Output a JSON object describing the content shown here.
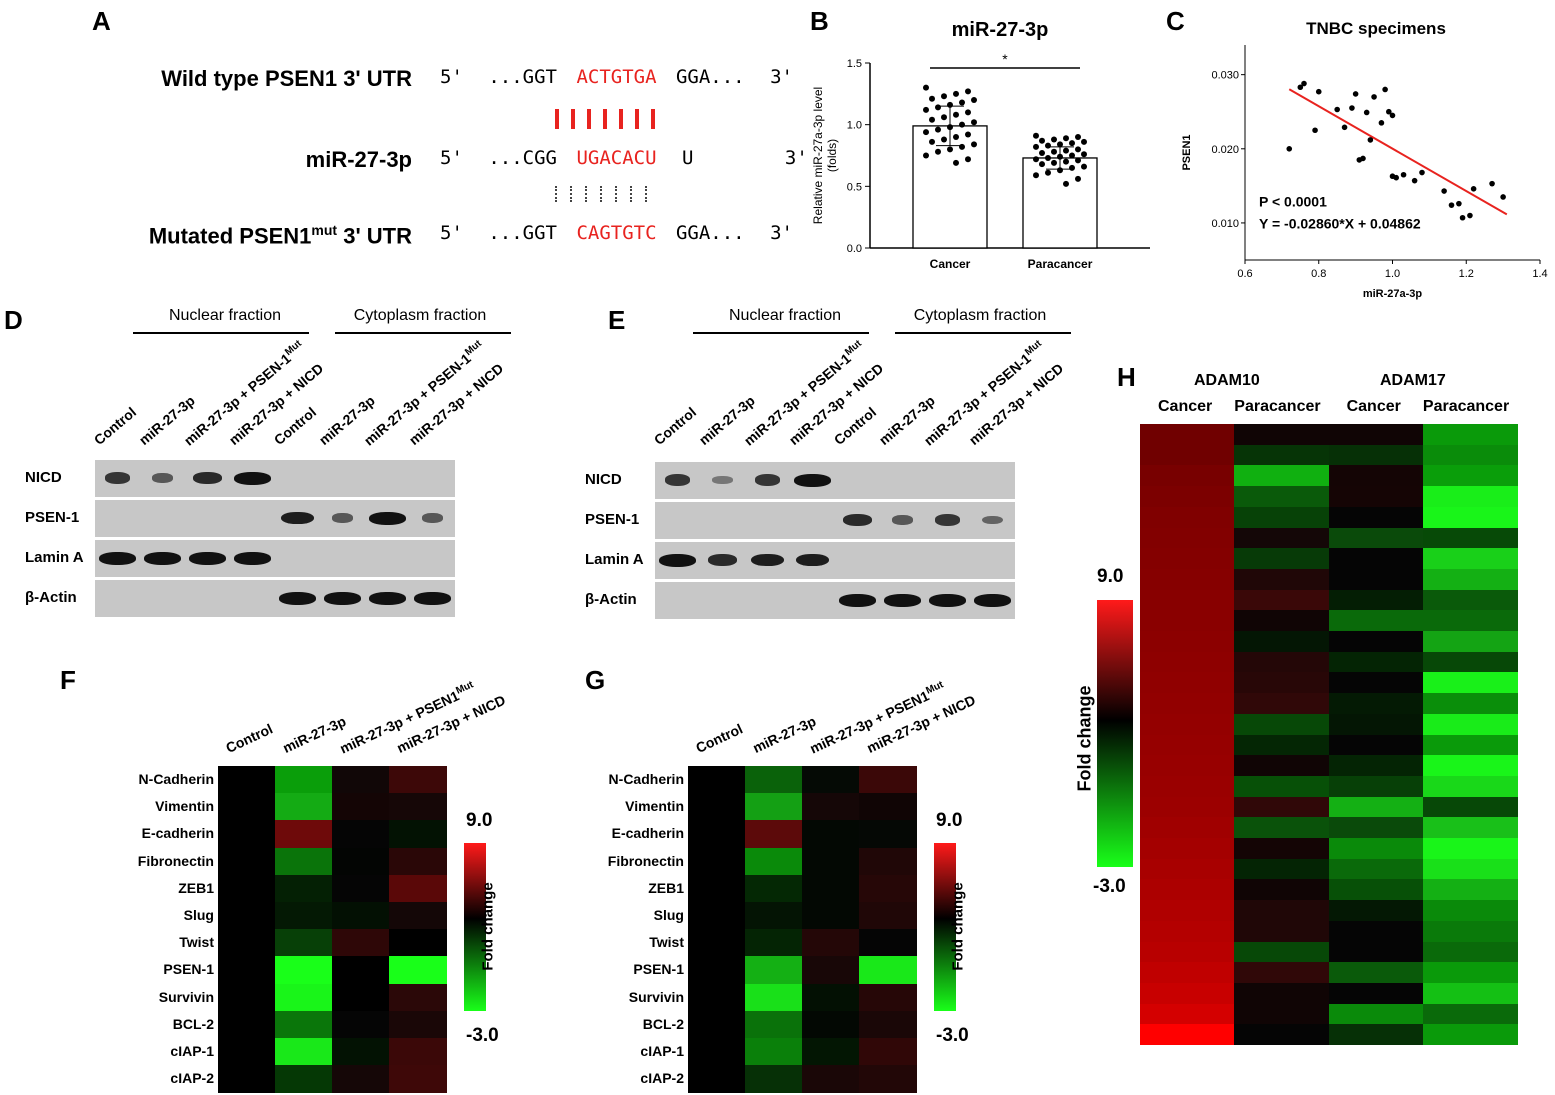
{
  "panels": {
    "A": "A",
    "B": "B",
    "C": "C",
    "D": "D",
    "E": "E",
    "F": "F",
    "G": "G",
    "H": "H"
  },
  "panelA": {
    "rows": [
      {
        "label": "Wild type PSEN1 3' UTR",
        "five": "5'",
        "pre": "...GGT",
        "core": "ACTGTGA",
        "post": "GGA...",
        "three": "3'"
      },
      {
        "label": "miR-27-3p",
        "five": "5'",
        "pre": "...CGG",
        "core": "UGACACU",
        "post": "U",
        "three": "3'"
      },
      {
        "label_pre": "Mutated PSEN1",
        "label_sup": "mut",
        "label_post": " 3' UTR",
        "five": "5'",
        "pre": "...GGT",
        "core": "CAGTGTC",
        "post": "GGA...",
        "three": "3'"
      }
    ]
  },
  "panelB": {
    "chart_data": {
      "type": "bar",
      "title": "miR-27-3p",
      "ylabel_line1": "Relative miR-27a-3p level",
      "ylabel_line2": "(folds)",
      "categories": [
        "Cancer",
        "Paracancer"
      ],
      "values": [
        0.99,
        0.73
      ],
      "errors": [
        0.16,
        0.09
      ],
      "ylim": [
        0,
        1.5
      ],
      "yticks": [
        "0.0",
        "0.5",
        "1.0",
        "1.5"
      ],
      "significance": "*",
      "points": [
        [
          1.3,
          1.27,
          1.25,
          1.23,
          1.21,
          1.2,
          1.18,
          1.16,
          1.14,
          1.12,
          1.1,
          1.08,
          1.06,
          1.04,
          1.02,
          1.0,
          0.98,
          0.96,
          0.94,
          0.92,
          0.9,
          0.88,
          0.86,
          0.84,
          0.82,
          0.8,
          0.78,
          0.75,
          0.72,
          0.69
        ],
        [
          0.91,
          0.9,
          0.89,
          0.88,
          0.87,
          0.86,
          0.85,
          0.84,
          0.83,
          0.82,
          0.8,
          0.79,
          0.78,
          0.77,
          0.76,
          0.75,
          0.74,
          0.73,
          0.72,
          0.71,
          0.7,
          0.69,
          0.68,
          0.66,
          0.65,
          0.63,
          0.61,
          0.59,
          0.56,
          0.52
        ]
      ]
    }
  },
  "panelC": {
    "chart_data": {
      "type": "scatter",
      "title": "TNBC specimens",
      "xlabel": "miR-27a-3p",
      "ylabel": "PSEN1",
      "xlim": [
        0.6,
        1.4
      ],
      "ylim": [
        0.005,
        0.034
      ],
      "xticks": [
        "0.6",
        "0.8",
        "1.0",
        "1.2",
        "1.4"
      ],
      "yticks": [
        "0.010",
        "0.020",
        "0.030"
      ],
      "x": [
        0.72,
        0.75,
        0.76,
        0.79,
        0.8,
        0.85,
        0.87,
        0.89,
        0.9,
        0.91,
        0.92,
        0.93,
        0.94,
        0.95,
        0.97,
        0.98,
        0.99,
        1.0,
        1.0,
        1.01,
        1.03,
        1.06,
        1.08,
        1.14,
        1.16,
        1.18,
        1.19,
        1.21,
        1.22,
        1.27,
        1.3
      ],
      "y": [
        0.02,
        0.0283,
        0.0288,
        0.0225,
        0.0277,
        0.0253,
        0.0229,
        0.0255,
        0.0274,
        0.0185,
        0.0187,
        0.0249,
        0.0212,
        0.027,
        0.0235,
        0.028,
        0.025,
        0.0163,
        0.0245,
        0.0161,
        0.0165,
        0.0157,
        0.0168,
        0.0143,
        0.0124,
        0.0126,
        0.0107,
        0.011,
        0.0146,
        0.0153,
        0.0135
      ],
      "fit": {
        "slope": -0.0286,
        "intercept": 0.04862,
        "x0": 0.72,
        "x1": 1.31
      },
      "annot1": "P < 0.0001",
      "annot2": "Y = -0.02860*X + 0.04862"
    }
  },
  "westernD": {
    "nuclear": "Nuclear fraction",
    "cyto": "Cytoplasm fraction",
    "lanes": [
      "Control",
      "miR-27-3p",
      "miR-27-3p + PSEN-1",
      "miR-27-3p + NICD",
      "Control",
      "miR-27-3p",
      "miR-27-3p + PSEN-1",
      "miR-27-3p + NICD"
    ],
    "sup": "Mut",
    "rows": [
      "NICD",
      "PSEN-1",
      "Lamin A",
      "β-Actin"
    ],
    "bands": [
      [
        0.7,
        0.4,
        0.8,
        1.0,
        0,
        0,
        0,
        0
      ],
      [
        0,
        0,
        0,
        0,
        0.9,
        0.4,
        1.0,
        0.4
      ],
      [
        1.0,
        1.0,
        1.0,
        1.0,
        0,
        0,
        0,
        0
      ],
      [
        0,
        0,
        0,
        0,
        1.0,
        1.0,
        1.0,
        1.0
      ]
    ]
  },
  "westernE": {
    "nuclear": "Nuclear fraction",
    "cyto": "Cytoplasm fraction",
    "lanes": [
      "Control",
      "miR-27-3p",
      "miR-27-3p + PSEN-1",
      "miR-27-3p + NICD",
      "Control",
      "miR-27-3p",
      "miR-27-3p + PSEN-1",
      "miR-27-3p + NICD"
    ],
    "sup": "Mut",
    "rows": [
      "NICD",
      "PSEN-1",
      "Lamin A",
      "β-Actin"
    ],
    "bands": [
      [
        0.7,
        0.15,
        0.7,
        1.0,
        0,
        0,
        0,
        0
      ],
      [
        0,
        0,
        0,
        0,
        0.8,
        0.4,
        0.7,
        0.3
      ],
      [
        1.0,
        0.8,
        0.9,
        0.9,
        0,
        0,
        0,
        0
      ],
      [
        0,
        0,
        0,
        0,
        1.0,
        1.0,
        1.0,
        1.0
      ]
    ]
  },
  "heatF": {
    "cols": [
      "Control",
      "miR-27-3p",
      "miR-27-3p + PSEN1",
      "miR-27-3p + NICD"
    ],
    "sup": "Mut",
    "genes": [
      "N-Cadherin",
      "Vimentin",
      "E-cadherin",
      "Fibronectin",
      "ZEB1",
      "Slug",
      "Twist",
      "PSEN-1",
      "Survivin",
      "BCL-2",
      "cIAP-1",
      "cIAP-2"
    ],
    "colors": [
      [
        "#000000",
        "#0a9e0a",
        "#110707",
        "#3d0808"
      ],
      [
        "#000000",
        "#14ab14",
        "#140505",
        "#160707"
      ],
      [
        "#000000",
        "#6e0a0a",
        "#050505",
        "#031203"
      ],
      [
        "#000000",
        "#0a740a",
        "#030503",
        "#2a0707"
      ],
      [
        "#000000",
        "#042004",
        "#050505",
        "#5a0808"
      ],
      [
        "#000000",
        "#041904",
        "#031003",
        "#140707"
      ],
      [
        "#000000",
        "#074007",
        "#2e0707",
        "#000000"
      ],
      [
        "#000000",
        "#19ff19",
        "#000000",
        "#19ff19"
      ],
      [
        "#000000",
        "#19f519",
        "#000000",
        "#2b0808"
      ],
      [
        "#000000",
        "#0a760a",
        "#050505",
        "#1a0707"
      ],
      [
        "#000000",
        "#19e819",
        "#031203",
        "#3b0808"
      ],
      [
        "#000000",
        "#053805",
        "#150707",
        "#3e0808"
      ]
    ],
    "cb_top": "9.0",
    "cb_bot": "-3.0",
    "cb_label": "Fold change"
  },
  "heatG": {
    "cols": [
      "Control",
      "miR-27-3p",
      "miR-27-3p + PSEN1",
      "miR-27-3p + NICD"
    ],
    "sup": "Mut",
    "genes": [
      "N-Cadherin",
      "Vimentin",
      "E-cadherin",
      "Fibronectin",
      "ZEB1",
      "Slug",
      "Twist",
      "PSEN-1",
      "Survivin",
      "BCL-2",
      "cIAP-1",
      "cIAP-2"
    ],
    "colors": [
      [
        "#000000",
        "#0a620a",
        "#050a05",
        "#3b0808"
      ],
      [
        "#000000",
        "#14a014",
        "#150707",
        "#100505"
      ],
      [
        "#000000",
        "#5c0a0a",
        "#030803",
        "#050805"
      ],
      [
        "#000000",
        "#0a8a0a",
        "#030803",
        "#200707"
      ],
      [
        "#000000",
        "#042804",
        "#030803",
        "#260707"
      ],
      [
        "#000000",
        "#041404",
        "#030803",
        "#200707"
      ],
      [
        "#000000",
        "#042404",
        "#240707",
        "#050505"
      ],
      [
        "#000000",
        "#14b014",
        "#180707",
        "#19e819"
      ],
      [
        "#000000",
        "#19e019",
        "#031003",
        "#260707"
      ],
      [
        "#000000",
        "#0a720a",
        "#030803",
        "#1a0707"
      ],
      [
        "#000000",
        "#0a800a",
        "#031603",
        "#300707"
      ],
      [
        "#000000",
        "#063006",
        "#1a0707",
        "#220707"
      ]
    ],
    "cb_top": "9.0",
    "cb_bot": "-3.0",
    "cb_label": "Fold change"
  },
  "heatH": {
    "groups": [
      "ADAM10",
      "ADAM17"
    ],
    "cols": [
      "Cancer",
      "Paracancer",
      "Cancer",
      "Paracancer"
    ],
    "cb_top": "9.0",
    "cb_bot": "-3.0",
    "cb_label": "Fold change",
    "colors": [
      [
        "#700000",
        "#100505",
        "#100505",
        "#0a9a0a"
      ],
      [
        "#700000",
        "#063406",
        "#063006",
        "#0a8c0a"
      ],
      [
        "#780000",
        "#10b010",
        "#140505",
        "#0a9e0a"
      ],
      [
        "#7c0000",
        "#0a5a0a",
        "#150505",
        "#19ee19"
      ],
      [
        "#800000",
        "#074207",
        "#050505",
        "#19f519"
      ],
      [
        "#820000",
        "#140707",
        "#0a4a0a",
        "#074a07"
      ],
      [
        "#840000",
        "#073a07",
        "#050505",
        "#19d019"
      ],
      [
        "#860000",
        "#200707",
        "#050505",
        "#14b014"
      ],
      [
        "#880000",
        "#3a0808",
        "#041e04",
        "#0a5a0a"
      ],
      [
        "#8a0000",
        "#100505",
        "#0a6a0a",
        "#0a6a0a"
      ],
      [
        "#8c0000",
        "#041604",
        "#050505",
        "#14a414"
      ],
      [
        "#8e0000",
        "#240707",
        "#042404",
        "#074807"
      ],
      [
        "#900000",
        "#280707",
        "#050505",
        "#19f019"
      ],
      [
        "#920000",
        "#300808",
        "#041a04",
        "#0a8e0a"
      ],
      [
        "#940000",
        "#074807",
        "#041604",
        "#19ec19"
      ],
      [
        "#960000",
        "#042604",
        "#050505",
        "#0a9a0a"
      ],
      [
        "#980000",
        "#100505",
        "#042404",
        "#19f519"
      ],
      [
        "#9a0000",
        "#075007",
        "#074007",
        "#19d819"
      ],
      [
        "#9c0000",
        "#300808",
        "#14b014",
        "#074807"
      ],
      [
        "#a00000",
        "#0a520a",
        "#0a4a0a",
        "#19c019"
      ],
      [
        "#a40000",
        "#140505",
        "#0a8a0a",
        "#19f519"
      ],
      [
        "#a80000",
        "#042404",
        "#0a6a0a",
        "#19e019"
      ],
      [
        "#ac0000",
        "#100505",
        "#075007",
        "#14b014"
      ],
      [
        "#b00000",
        "#200707",
        "#041804",
        "#0a8a0a"
      ],
      [
        "#b40000",
        "#200707",
        "#050505",
        "#0a7a0a"
      ],
      [
        "#b80000",
        "#074807",
        "#050505",
        "#0a6a0a"
      ],
      [
        "#c00000",
        "#300808",
        "#0a5a0a",
        "#0a9a0a"
      ],
      [
        "#c80000",
        "#100505",
        "#050505",
        "#14c014"
      ],
      [
        "#d40000",
        "#100505",
        "#0a8a0a",
        "#0a6a0a"
      ],
      [
        "#ff0000",
        "#050505",
        "#063006",
        "#0a9a0a"
      ]
    ]
  }
}
